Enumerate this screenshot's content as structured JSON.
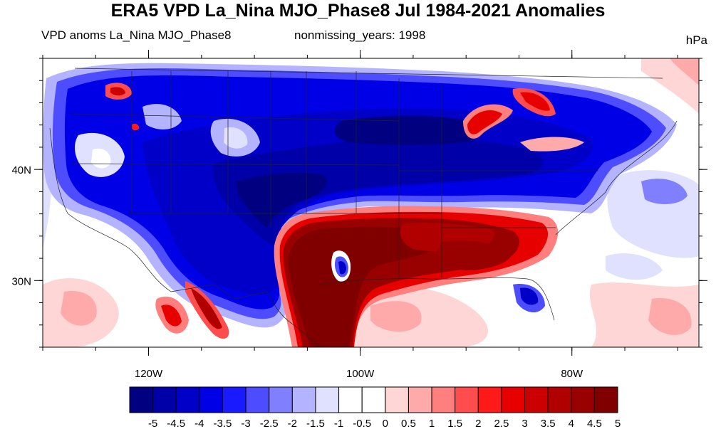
{
  "title": "ERA5 VPD La_Nina MJO_Phase8 Jul 1984-2021 Anomalies",
  "left_label": "VPD anoms La_Nina MJO_Phase8",
  "center_label": "nonmissing_years: 1998",
  "units": "hPa",
  "map": {
    "lon_range": [
      -130,
      -68
    ],
    "lat_range": [
      24,
      50
    ],
    "lon_ticks": [
      {
        "value": -120,
        "label": "120W"
      },
      {
        "value": -100,
        "label": "100W"
      },
      {
        "value": -80,
        "label": "80W"
      }
    ],
    "lat_ticks": [
      {
        "value": 40,
        "label": "40N"
      },
      {
        "value": 30,
        "label": "30N"
      }
    ],
    "minor_lon_step": 5,
    "minor_lat_step": 2
  },
  "colorbar": {
    "levels": [
      "-5",
      "-4.5",
      "-4",
      "-3.5",
      "-3",
      "-2.5",
      "-2",
      "-1.5",
      "-1",
      "-0.5",
      "0",
      "0.5",
      "1",
      "1.5",
      "2",
      "2.5",
      "3",
      "3.5",
      "4",
      "4.5",
      "5"
    ],
    "colors": [
      "#000080",
      "#0000a8",
      "#0000c8",
      "#0000e6",
      "#1a1aff",
      "#4d4dff",
      "#8080ff",
      "#b3b3ff",
      "#e0e0ff",
      "#ffffff",
      "#ffffff",
      "#ffd6d6",
      "#ffaaaa",
      "#ff7f7f",
      "#ff4d4d",
      "#ff1a1a",
      "#e60000",
      "#cc0000",
      "#b00000",
      "#990000",
      "#800000"
    ]
  }
}
